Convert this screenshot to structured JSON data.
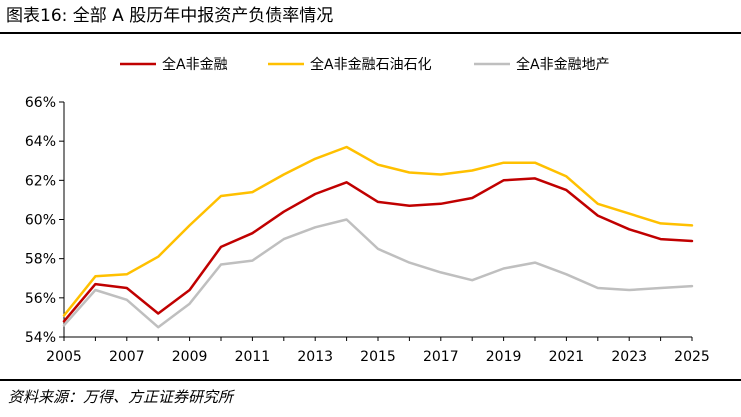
{
  "figure": {
    "title": "图表16: 全部 A 股历年中报资产负债率情况",
    "source": "资料来源：万得、方正证券研究所"
  },
  "chart_data": {
    "type": "line",
    "x": [
      2005,
      2006,
      2007,
      2008,
      2009,
      2010,
      2011,
      2012,
      2013,
      2014,
      2015,
      2016,
      2017,
      2018,
      2019,
      2020,
      2021,
      2022,
      2023,
      2024,
      2025
    ],
    "series": [
      {
        "name": "全A非金融",
        "color": "#c00000",
        "values": [
          54.8,
          56.7,
          56.5,
          55.2,
          56.4,
          58.6,
          59.3,
          60.4,
          61.3,
          61.9,
          60.9,
          60.7,
          60.8,
          61.1,
          62.0,
          62.1,
          61.5,
          60.2,
          59.5,
          59.0,
          58.9
        ]
      },
      {
        "name": "全A非金融石油石化",
        "color": "#ffc000",
        "values": [
          55.1,
          57.1,
          57.2,
          58.1,
          59.7,
          61.2,
          61.4,
          62.3,
          63.1,
          63.7,
          62.8,
          62.4,
          62.3,
          62.5,
          62.9,
          62.9,
          62.2,
          60.8,
          60.3,
          59.8,
          59.7
        ]
      },
      {
        "name": "全A非金融地产",
        "color": "#bfbfbf",
        "values": [
          54.6,
          56.4,
          55.9,
          54.5,
          55.7,
          57.7,
          57.9,
          59.0,
          59.6,
          60.0,
          58.5,
          57.8,
          57.3,
          56.9,
          57.5,
          57.8,
          57.2,
          56.5,
          56.4,
          56.5,
          56.6
        ]
      }
    ],
    "ylim": [
      54,
      66
    ],
    "ytick_labels": [
      "54%",
      "56%",
      "58%",
      "60%",
      "62%",
      "64%",
      "66%"
    ],
    "xtick_labels": [
      "2005",
      "2007",
      "2009",
      "2011",
      "2013",
      "2015",
      "2017",
      "2019",
      "2021",
      "2023",
      "2025"
    ],
    "legend_position": "top",
    "grid": false
  }
}
